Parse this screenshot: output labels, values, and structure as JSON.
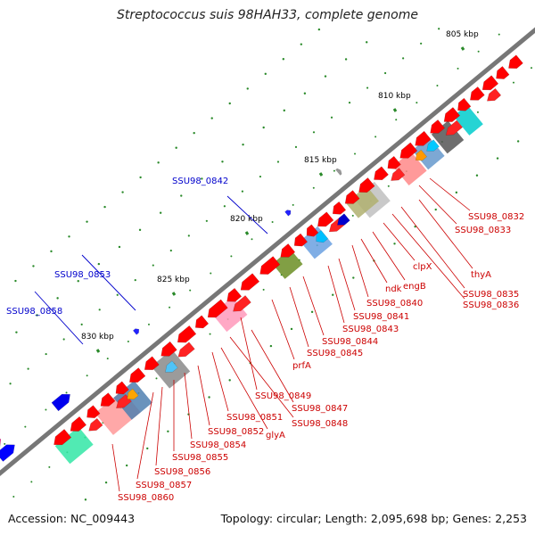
{
  "title": "Streptococcus suis 98HAH33, complete genome",
  "accession_text": "Accession: NC_009443",
  "summary_text": "Topology: circular; Length: 2,095,698 bp; Genes: 2,253",
  "colors": {
    "backbone": "#777777",
    "gene": "#ff0000",
    "label_plus": "#0000cc",
    "label_minus": "#cc0000",
    "tick_dot": "#2a8a2a"
  },
  "ticks": [
    {
      "label": "805 kbp"
    },
    {
      "label": "810 kbp"
    },
    {
      "label": "815 kbp"
    },
    {
      "label": "820 kbp"
    },
    {
      "label": "825 kbp"
    },
    {
      "label": "830 kbp"
    }
  ],
  "gene_labels_plus": [
    {
      "text": "SSU98_0842"
    },
    {
      "text": "SSU98_0853"
    },
    {
      "text": "SSU98_0858"
    }
  ],
  "gene_labels_minus": [
    {
      "text": "SSU98_0832"
    },
    {
      "text": "SSU98_0833"
    },
    {
      "text": "thyA"
    },
    {
      "text": "SSU98_0835"
    },
    {
      "text": "SSU98_0836"
    },
    {
      "text": "clpX"
    },
    {
      "text": "engB"
    },
    {
      "text": "ndk"
    },
    {
      "text": "SSU98_0840"
    },
    {
      "text": "SSU98_0841"
    },
    {
      "text": "SSU98_0843"
    },
    {
      "text": "SSU98_0844"
    },
    {
      "text": "SSU98_0845"
    },
    {
      "text": "prfA"
    },
    {
      "text": "SSU98_0849"
    },
    {
      "text": "SSU98_0847"
    },
    {
      "text": "SSU98_0848"
    },
    {
      "text": "SSU98_0851"
    },
    {
      "text": "glyA"
    },
    {
      "text": "SSU98_0852"
    },
    {
      "text": "SSU98_0854"
    },
    {
      "text": "SSU98_0855"
    },
    {
      "text": "SSU98_0856"
    },
    {
      "text": "SSU98_0857"
    },
    {
      "text": "SSU98_0860"
    }
  ]
}
